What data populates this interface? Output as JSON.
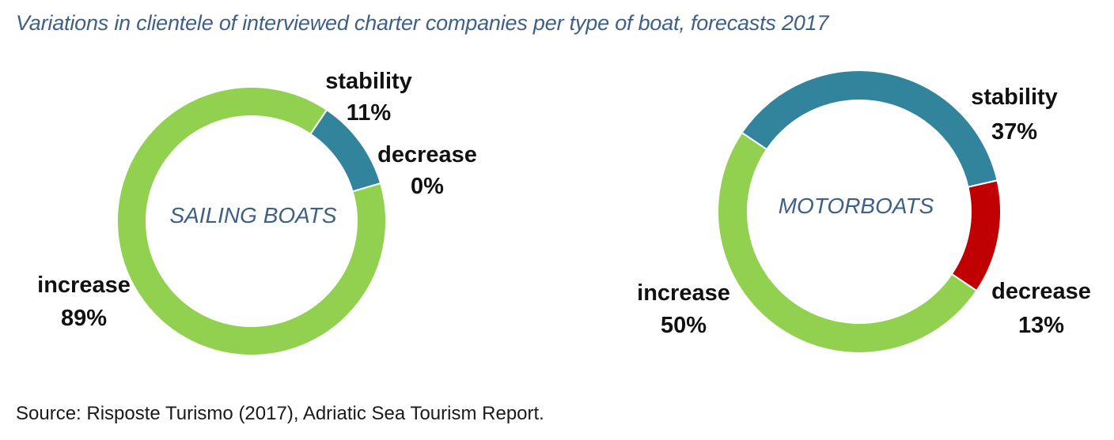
{
  "title": "Variations in clientele of interviewed charter companies per type of boat, forecasts 2017",
  "source": "Source: Risposte Turismo (2017), Adriatic Sea Tourism Report.",
  "colors": {
    "increase": "#92d050",
    "stability": "#31849b",
    "decrease": "#c00000"
  },
  "chart_data": [
    {
      "type": "pie",
      "center_label": "SAILING BOATS",
      "slices": [
        {
          "name": "stability",
          "value": 11,
          "label": "11%"
        },
        {
          "name": "decrease",
          "value": 0,
          "label": "0%"
        },
        {
          "name": "increase",
          "value": 89,
          "label": "89%"
        }
      ]
    },
    {
      "type": "pie",
      "center_label": "MOTORBOATS",
      "slices": [
        {
          "name": "stability",
          "value": 37,
          "label": "37%"
        },
        {
          "name": "decrease",
          "value": 13,
          "label": "13%"
        },
        {
          "name": "increase",
          "value": 50,
          "label": "50%"
        }
      ]
    }
  ]
}
